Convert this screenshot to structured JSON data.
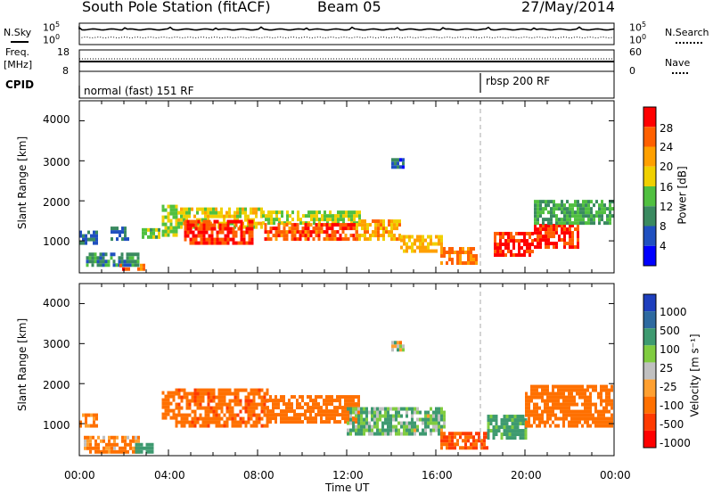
{
  "header": {
    "station": "South Pole Station (fitACF)",
    "beam": "Beam 05",
    "date": "27/May/2014"
  },
  "strips": {
    "nsky_label": "N.Sky",
    "nsearch_label": "N.Search",
    "left_ticks": [
      "10^5",
      "10^0"
    ],
    "right_ticks": [
      "10^5",
      "10^0"
    ],
    "freq_label_line1": "Freq.",
    "freq_label_line2": "[MHz]",
    "freq_ticks": [
      "18",
      "8"
    ],
    "nave_ticks": [
      "60",
      "0"
    ],
    "nave_label": "Nave",
    "cpid_label": "CPID",
    "cpid_segments": [
      {
        "label": "normal (fast) 151 RF",
        "start_hour": 0
      },
      {
        "label": "rbsp 200 RF",
        "start_hour": 18
      }
    ]
  },
  "axes": {
    "ylabel": "Slant Range [km]",
    "xlabel": "Time UT",
    "yticks": [
      "4000",
      "3000",
      "2000",
      "1000"
    ],
    "xticks": [
      "00:00",
      "04:00",
      "08:00",
      "12:00",
      "16:00",
      "20:00",
      "00:00"
    ]
  },
  "colorbars": {
    "power": {
      "label": "Power [dB]",
      "ticks": [
        "28",
        "24",
        "20",
        "16",
        "12",
        "8",
        "4"
      ],
      "colors": [
        "#ff0000",
        "#ff6000",
        "#ffa000",
        "#f0d000",
        "#50c040",
        "#3a8a60",
        "#2050c0",
        "#0000ff"
      ]
    },
    "velocity": {
      "label": "Velocity [m s⁻¹]",
      "ticks": [
        "1000",
        "500",
        "100",
        "25",
        "-25",
        "-100",
        "-500",
        "-1000"
      ],
      "colors": [
        "#1e3fbe",
        "#2e6aa0",
        "#3e9a70",
        "#80cc40",
        "#c0c0c0",
        "#ffa030",
        "#ff7000",
        "#ff3a00",
        "#ff0000"
      ]
    }
  },
  "chart_data": [
    {
      "type": "heatmap",
      "title": "Power",
      "xlabel": "Time UT",
      "ylabel": "Slant Range [km]",
      "xlim": [
        0,
        24
      ],
      "ylim": [
        200,
        4500
      ],
      "colorbar": "Power [dB]",
      "bands": [
        {
          "t0": 0.0,
          "t1": 0.8,
          "r0": 900,
          "r1": 1250,
          "v": 6
        },
        {
          "t0": 0.3,
          "t1": 2.7,
          "r0": 350,
          "r1": 650,
          "v": 8
        },
        {
          "t0": 1.8,
          "t1": 2.2,
          "r0": 250,
          "r1": 400,
          "v": 26
        },
        {
          "t0": 2.6,
          "t1": 2.9,
          "r0": 250,
          "r1": 420,
          "v": 24
        },
        {
          "t0": 1.4,
          "t1": 2.2,
          "r0": 1000,
          "r1": 1300,
          "v": 6
        },
        {
          "t0": 2.8,
          "t1": 3.6,
          "r0": 1050,
          "r1": 1250,
          "v": 12
        },
        {
          "t0": 3.7,
          "t1": 4.4,
          "r0": 1100,
          "r1": 1900,
          "v": 14
        },
        {
          "t0": 4.4,
          "t1": 8.2,
          "r0": 1300,
          "r1": 1800,
          "v": 16
        },
        {
          "t0": 4.7,
          "t1": 7.8,
          "r0": 900,
          "r1": 1500,
          "v": 26
        },
        {
          "t0": 8.2,
          "t1": 12.6,
          "r0": 1400,
          "r1": 1700,
          "v": 14
        },
        {
          "t0": 8.3,
          "t1": 12.4,
          "r0": 1000,
          "r1": 1400,
          "v": 25
        },
        {
          "t0": 12.4,
          "t1": 14.4,
          "r0": 1000,
          "r1": 1500,
          "v": 20
        },
        {
          "t0": 14.4,
          "t1": 16.2,
          "r0": 700,
          "r1": 1100,
          "v": 18
        },
        {
          "t0": 16.2,
          "t1": 17.8,
          "r0": 400,
          "r1": 800,
          "v": 22
        },
        {
          "t0": 18.6,
          "t1": 20.4,
          "r0": 600,
          "r1": 1200,
          "v": 27
        },
        {
          "t0": 20.4,
          "t1": 22.4,
          "r0": 800,
          "r1": 1400,
          "v": 27
        },
        {
          "t0": 20.4,
          "t1": 23.9,
          "r0": 1400,
          "r1": 1950,
          "v": 10
        },
        {
          "t0": 14.0,
          "t1": 14.5,
          "r0": 2800,
          "r1": 3050,
          "v": 5
        }
      ]
    },
    {
      "type": "heatmap",
      "title": "Velocity",
      "xlabel": "Time UT",
      "ylabel": "Slant Range [km]",
      "xlim": [
        0,
        24
      ],
      "ylim": [
        200,
        4500
      ],
      "colorbar": "Velocity [m s-1]",
      "bands": [
        {
          "t0": 0.0,
          "t1": 0.8,
          "r0": 900,
          "r1": 1250,
          "v": -200
        },
        {
          "t0": 0.2,
          "t1": 2.7,
          "r0": 250,
          "r1": 650,
          "v": -150
        },
        {
          "t0": 2.5,
          "t1": 3.3,
          "r0": 250,
          "r1": 500,
          "v": 300
        },
        {
          "t0": 3.7,
          "t1": 4.3,
          "r0": 1100,
          "r1": 1800,
          "v": -300
        },
        {
          "t0": 4.3,
          "t1": 8.4,
          "r0": 900,
          "r1": 1800,
          "v": -400
        },
        {
          "t0": 8.4,
          "t1": 12.5,
          "r0": 1000,
          "r1": 1700,
          "v": -350
        },
        {
          "t0": 12.0,
          "t1": 16.4,
          "r0": 700,
          "r1": 1400,
          "v": 120
        },
        {
          "t0": 16.2,
          "t1": 18.3,
          "r0": 350,
          "r1": 750,
          "v": -500
        },
        {
          "t0": 18.3,
          "t1": 20.0,
          "r0": 600,
          "r1": 1200,
          "v": 200
        },
        {
          "t0": 20.0,
          "t1": 23.9,
          "r0": 900,
          "r1": 1900,
          "v": -300
        },
        {
          "t0": 14.0,
          "t1": 14.5,
          "r0": 2800,
          "r1": 3050,
          "v": 10
        }
      ]
    }
  ]
}
